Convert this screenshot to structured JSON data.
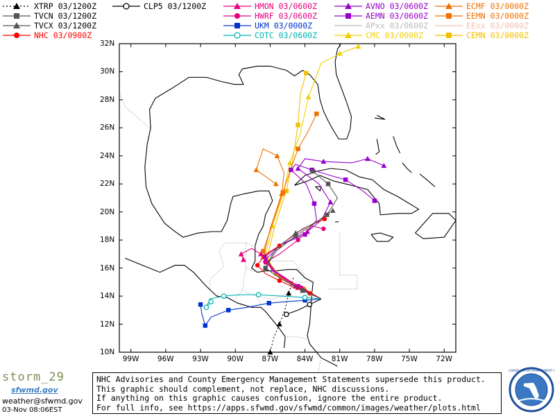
{
  "legend": [
    {
      "label": "XTRP 03/1200Z",
      "color": "#000000",
      "marker": "triangle-dotted"
    },
    {
      "label": "TVCN 03/1200Z",
      "color": "#555555",
      "marker": "square"
    },
    {
      "label": "TVCX 03/1200Z",
      "color": "#555555",
      "marker": "triangle"
    },
    {
      "label": "NHC 03/0900Z",
      "color": "#ff0000",
      "marker": "circle"
    },
    {
      "label": "CLP5 03/1200Z",
      "color": "#000000",
      "marker": "open-circle"
    },
    {
      "label": "HMON 03/0600Z",
      "color": "#e6007e",
      "marker": "triangle"
    },
    {
      "label": "HWRF 03/0600Z",
      "color": "#e6007e",
      "marker": "circle"
    },
    {
      "label": "UKM 03/0000Z",
      "color": "#0033cc",
      "marker": "square"
    },
    {
      "label": "COTC 03/0600Z",
      "color": "#00b3b3",
      "marker": "open-circle"
    },
    {
      "label": "AVNO 03/0600Z",
      "color": "#9900cc",
      "marker": "triangle"
    },
    {
      "label": "AEMN 03/0600Z",
      "color": "#9900cc",
      "marker": "square"
    },
    {
      "label": "APxx 03/0600Z",
      "color": "#bbbbbb",
      "marker": "none"
    },
    {
      "label": "CMC 03/0000Z",
      "color": "#f0d000",
      "marker": "triangle"
    },
    {
      "label": "ECMF 03/0000Z",
      "color": "#f07000",
      "marker": "triangle"
    },
    {
      "label": "EEMN 03/0000Z",
      "color": "#f07000",
      "marker": "square"
    },
    {
      "label": "EExx 03/0000Z",
      "color": "#f4c0b0",
      "marker": "none"
    },
    {
      "label": "CEMN 03/0000Z",
      "color": "#f0c000",
      "marker": "square"
    }
  ],
  "map": {
    "lat_labels": [
      "32N",
      "30N",
      "28N",
      "26N",
      "24N",
      "22N",
      "20N",
      "18N",
      "16N",
      "14N",
      "12N",
      "10N"
    ],
    "lon_labels": [
      "99W",
      "96W",
      "93W",
      "90W",
      "87W",
      "84W",
      "81W",
      "78W",
      "75W",
      "72W"
    ],
    "lon_range": [
      -100,
      -71
    ],
    "lat_range": [
      10,
      32
    ]
  },
  "branding": {
    "name": "storm_29",
    "site": "sfwmd.gov",
    "email": "weather@sfwmd.gov",
    "timestamp": "03-Nov 08:06EST"
  },
  "disclaimer": [
    "NHC Advisories and County Emergency Management Statements supersede this product.",
    "This graphic should complement, not replace, NHC discussions.",
    "If anything on this graphic causes confusion, ignore the entire product.",
    "For full info, see  https://apps.sfwmd.gov/sfwmd/common/images/weather/plots.html"
  ],
  "logo": {
    "text": "SOUTH FLORIDA WATER MANAGEMENT DISTRICT"
  }
}
